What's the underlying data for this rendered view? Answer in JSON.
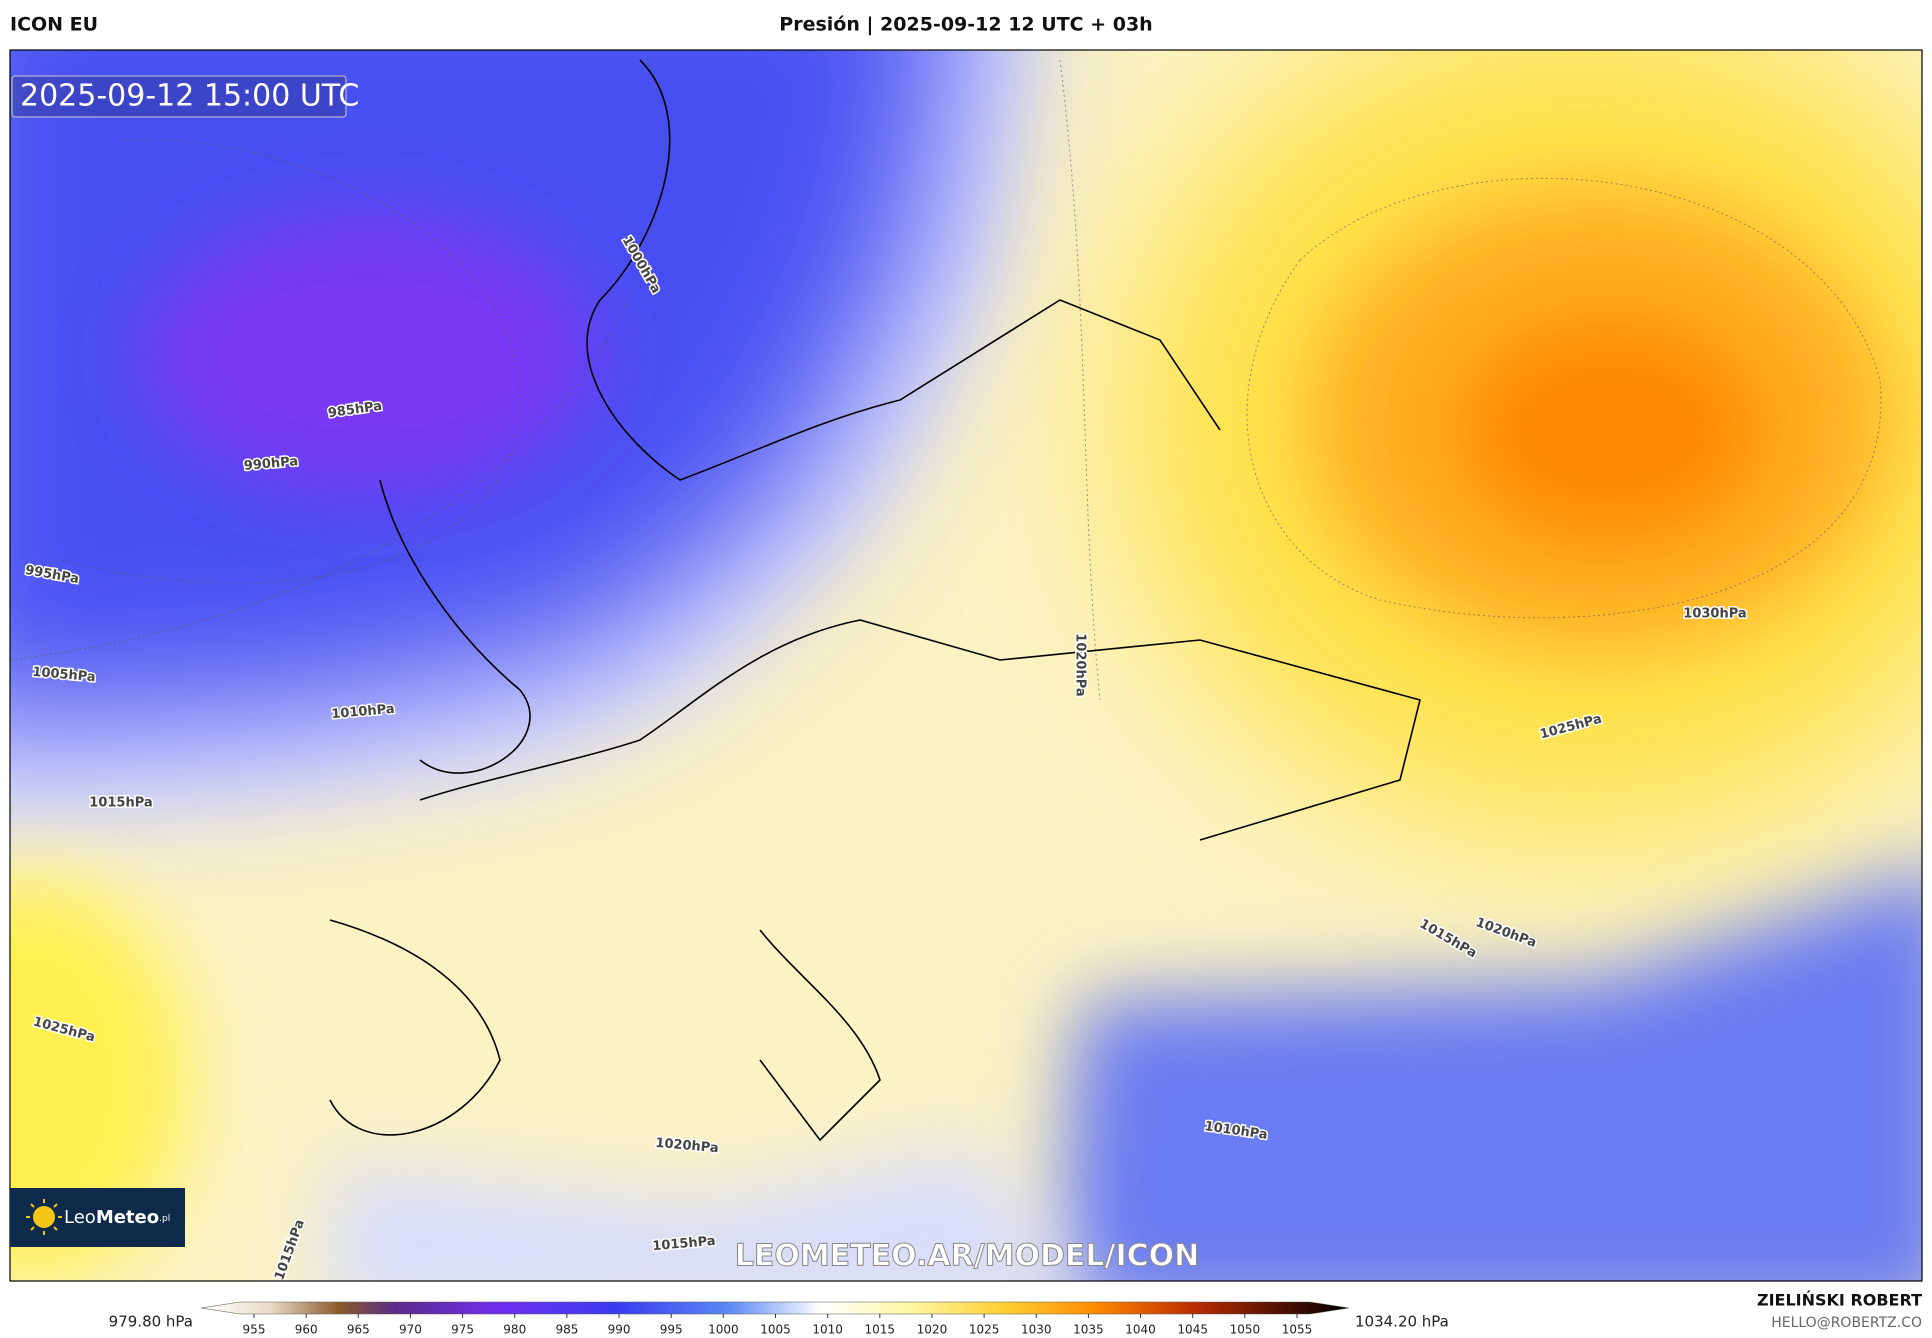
{
  "header": {
    "model": "ICON EU",
    "title": "Presión | 2025-09-12 12 UTC + 03h"
  },
  "map": {
    "timestamp": "2025-09-12 15:00 UTC",
    "watermark": "LEOMETEO.AR/MODEL/ICON",
    "logo": {
      "brand_light": "Leo",
      "brand_bold": "Meteo",
      "suffix": ".pl"
    },
    "isobar_labels": [
      "1000hPa",
      "985hPa",
      "990hPa",
      "995hPa",
      "1005hPa",
      "1010hPa",
      "1015hPa",
      "1020hPa",
      "1030hPa",
      "1025hPa",
      "1025hPa",
      "1020hPa",
      "1015hPa",
      "1015hPa",
      "1010hPa",
      "1020hPa",
      "1015hPa"
    ]
  },
  "colorbar": {
    "min_label": "979.80 hPa",
    "max_label": "1034.20 hPa",
    "ticks": [
      955,
      960,
      965,
      970,
      975,
      980,
      985,
      990,
      995,
      1000,
      1005,
      1010,
      1015,
      1020,
      1025,
      1030,
      1035,
      1040,
      1045,
      1050,
      1055
    ]
  },
  "footer": {
    "author": "ZIELIŃSKI ROBERT",
    "email": "HELLO@ROBERTZ.CO"
  }
}
